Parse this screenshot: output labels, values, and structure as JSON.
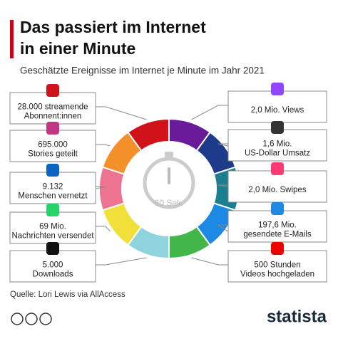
{
  "header": {
    "title": [
      "Das passiert im Internet",
      "in einer Minute"
    ],
    "subtitle": "Geschätzte Ereignisse im Internet je Minute im Jahr 2021"
  },
  "center": "60 Sek.",
  "left": [
    {
      "lines": [
        "28.000 streamende",
        "Abonnent:innen"
      ]
    },
    {
      "lines": [
        "695.000",
        "Stories geteilt"
      ]
    },
    {
      "lines": [
        "9.132",
        "Menschen vernetzt"
      ]
    },
    {
      "lines": [
        "69 Mio.",
        "Nachrichten versendet"
      ]
    },
    {
      "lines": [
        "5.000",
        "Downloads"
      ]
    }
  ],
  "right": [
    {
      "lines": [
        "2,0 Mio. Views"
      ]
    },
    {
      "lines": [
        "1,6 Mio.",
        "US-Dollar Umsatz"
      ]
    },
    {
      "lines": [
        "2,0 Mio. Swipes"
      ]
    },
    {
      "lines": [
        "197,6 Mio.",
        "gesendete E-Mails"
      ]
    },
    {
      "lines": [
        "500 Stunden",
        "Videos hochgeladen"
      ]
    }
  ],
  "footer": {
    "source": "Quelle: Lori Lewis via AllAccess",
    "brand": "statista"
  }
}
